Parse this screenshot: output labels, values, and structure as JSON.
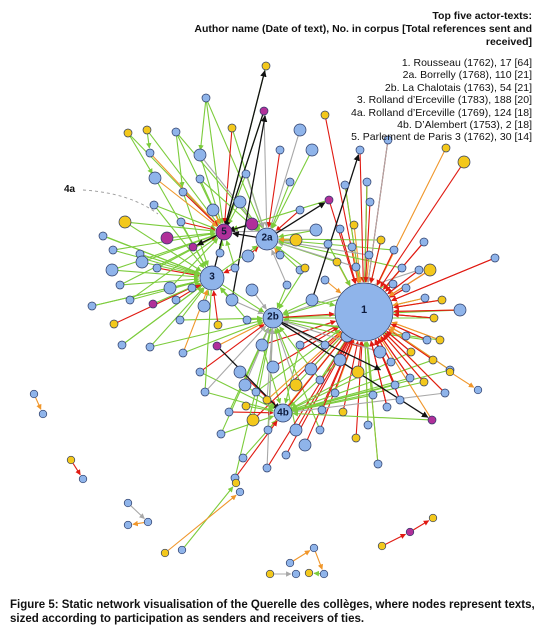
{
  "legend": {
    "title_line1": "Top five actor-texts:",
    "title_line2": "Author name (Date of text), No. in corpus [Total references sent and received]",
    "entries": [
      "1. Rousseau (1762), 17 [64]",
      "2a. Borrelly (1768), 110 [21]",
      "2b. La Chalotais (1763), 54 [21]",
      "3. Rolland d’Erceville (1783), 188 [20]",
      "4a. Rolland d’Erceville (1769), 124 [18]",
      "4b. D’Alembert (1753), 2 [18]",
      "5. Parlement de Paris 3 (1762), 30 [14]"
    ]
  },
  "labels": {
    "n1": "1",
    "n2a": "2a",
    "n2b": "2b",
    "n3": "3",
    "n4b": "4b",
    "n5": "5",
    "callout_4a": "4a"
  },
  "caption": "Figure 5: Static network visualisation of the Querelle des collèges, where nodes represent texts, sized according to participation as senders and receivers of ties.",
  "colors": {
    "node_blue": "#8fb4ea",
    "node_yellow": "#f3c81c",
    "node_magenta": "#b0309a",
    "edge_green": "#7ccc3c",
    "edge_red": "#e01a12",
    "edge_black": "#111111",
    "edge_gray": "#a8a8a8",
    "edge_orange": "#f0962a",
    "node_stroke": "#2a3a66"
  }
}
